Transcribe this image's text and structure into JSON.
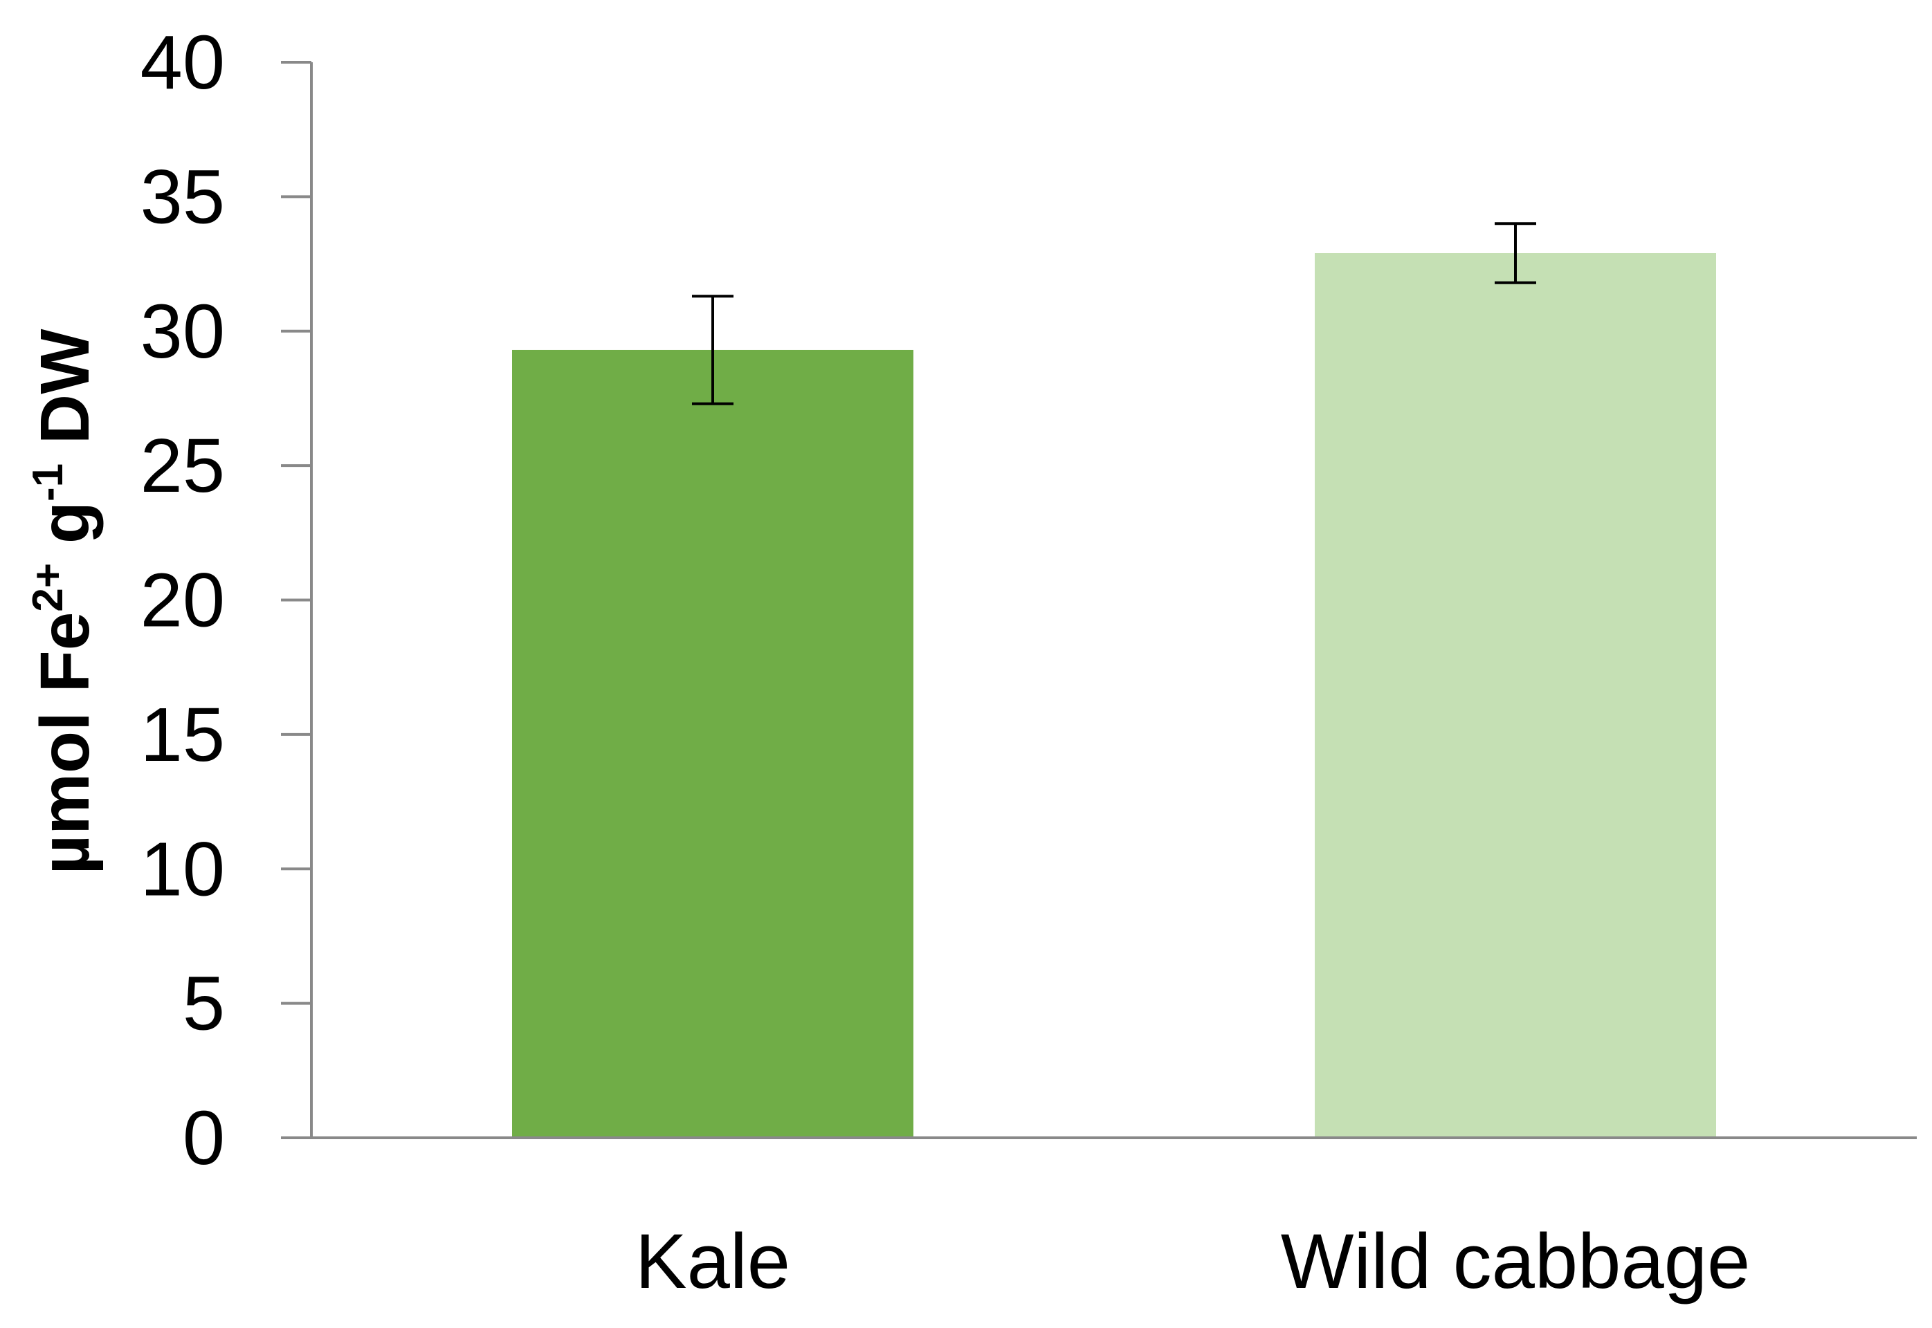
{
  "chart_data": {
    "type": "bar",
    "categories": [
      "Kale",
      "Wild cabbage"
    ],
    "values": [
      29.3,
      32.9
    ],
    "error_bars": [
      {
        "low": 27.3,
        "high": 31.3
      },
      {
        "low": 31.8,
        "high": 34.0
      }
    ],
    "colors": [
      "#70ad47",
      "#c5e0b4"
    ],
    "title": "",
    "xlabel": "",
    "ylabel": {
      "base1": "µmol Fe",
      "sup1": "2+",
      "base2": " g",
      "sup2": "-1",
      "base3": " DW"
    },
    "ylim": [
      0,
      40
    ],
    "yticks": [
      0,
      5,
      10,
      15,
      20,
      25,
      30,
      35,
      40
    ],
    "grid": false,
    "legend": "none",
    "axis_color": "#898989",
    "errorbar_color": "#000000"
  }
}
